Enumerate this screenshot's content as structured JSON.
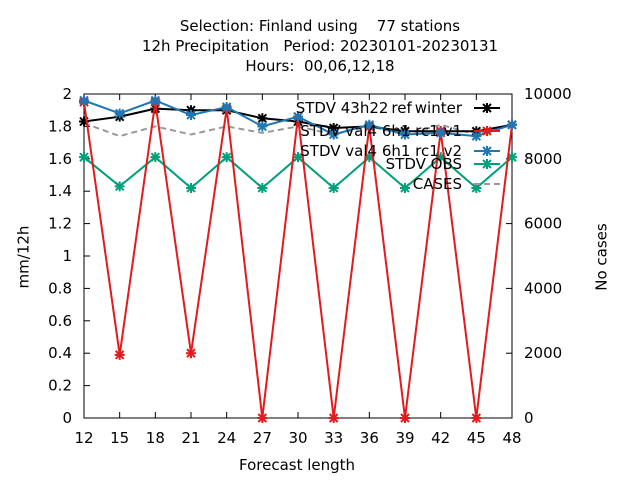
{
  "chart_data": {
    "type": "line",
    "title_lines": [
      "Selection: Finland using    77 stations",
      "12h Precipitation   Period: 20230101-20230131",
      "Hours:  00,06,12,18"
    ],
    "xlabel": "Forecast length",
    "ylabel": "mm/12h",
    "y2label": "No cases",
    "x": [
      12,
      15,
      18,
      21,
      24,
      27,
      30,
      33,
      36,
      39,
      42,
      45,
      48
    ],
    "xlim": [
      12,
      48
    ],
    "ylim": [
      0,
      2
    ],
    "y2lim": [
      0,
      10000
    ],
    "yticks": [
      "0",
      "0.2",
      "0.4",
      "0.6",
      "0.8",
      "1",
      "1.2",
      "1.4",
      "1.6",
      "1.8",
      "2"
    ],
    "y2ticks": [
      "0",
      "2000",
      "4000",
      "6000",
      "8000",
      "10000"
    ],
    "legend_position": "top-right",
    "grid": false,
    "series": [
      {
        "name": "STDV 43h22_ref_winter",
        "name_display": "STDV 43h22 ref winter",
        "color": "#000000",
        "marker": "x",
        "axis": "y",
        "values": [
          1.83,
          1.86,
          1.91,
          1.9,
          1.9,
          1.85,
          1.83,
          1.79,
          1.8,
          1.77,
          1.77,
          1.77,
          1.81
        ]
      },
      {
        "name": "STDV val_4_6h1_rc1_v1",
        "name_display": "STDV val4 6h1 rc1 v1",
        "color": "#e41a1c",
        "marker": "x",
        "axis": "y",
        "values": [
          1.95,
          0.39,
          1.95,
          0.4,
          1.91,
          0.0,
          1.86,
          0.0,
          1.8,
          0.0,
          1.77,
          0.0,
          1.81
        ]
      },
      {
        "name": "STDV val_4_6h1_rc1_v2",
        "name_display": "STDV val4 6h1 rc1 v2",
        "color": "#1f77b4",
        "marker": "x",
        "axis": "y",
        "values": [
          1.96,
          1.88,
          1.96,
          1.87,
          1.92,
          1.8,
          1.86,
          1.75,
          1.81,
          1.75,
          1.76,
          1.74,
          1.81
        ]
      },
      {
        "name": "STDV OBS",
        "color": "#00a07a",
        "marker": "x",
        "axis": "y",
        "values": [
          1.61,
          1.43,
          1.61,
          1.42,
          1.61,
          1.42,
          1.61,
          1.42,
          1.61,
          1.42,
          1.61,
          1.42,
          1.61
        ]
      },
      {
        "name": "CASES",
        "color": "#999999",
        "dashed": true,
        "axis": "y2",
        "values": [
          9100,
          8700,
          9000,
          8750,
          9000,
          8800,
          9000,
          8750,
          9000,
          8750,
          9050,
          8750,
          9050
        ]
      }
    ]
  }
}
